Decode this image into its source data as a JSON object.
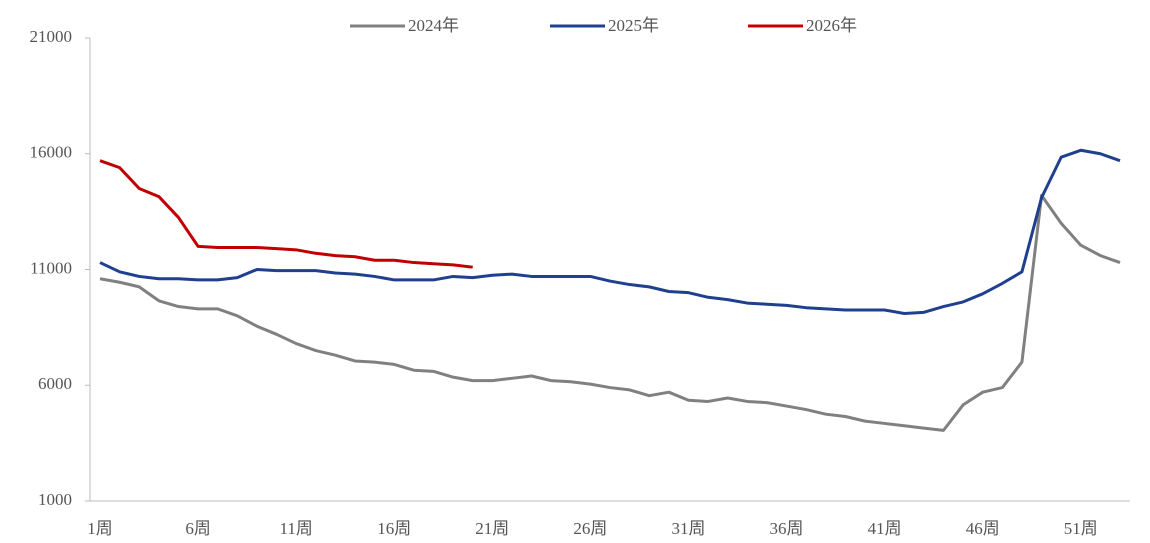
{
  "chart_data": {
    "type": "line",
    "categories": [
      "1周",
      null,
      null,
      null,
      null,
      "6周",
      null,
      null,
      null,
      null,
      "11周",
      null,
      null,
      null,
      null,
      "16周",
      null,
      null,
      null,
      null,
      "21周",
      null,
      null,
      null,
      null,
      "26周",
      null,
      null,
      null,
      null,
      "31周",
      null,
      null,
      null,
      null,
      "36周",
      null,
      null,
      null,
      null,
      "41周",
      null,
      null,
      null,
      null,
      "46周",
      null,
      null,
      null,
      null,
      "51周",
      null,
      null
    ],
    "series": [
      {
        "name": "2024年",
        "color": "#808080",
        "values": [
          10600,
          10450,
          10250,
          9650,
          9400,
          9300,
          9300,
          9000,
          8550,
          8200,
          7800,
          7500,
          7300,
          7050,
          7000,
          6900,
          6650,
          6600,
          6350,
          6200,
          6200,
          6300,
          6400,
          6200,
          6150,
          6050,
          5900,
          5800,
          5550,
          5700,
          5350,
          5300,
          5450,
          5300,
          5250,
          5100,
          4950,
          4750,
          4650,
          4450,
          4350,
          4250,
          4150,
          4050,
          5150,
          5700,
          5900,
          7000,
          14200,
          13000,
          12050,
          11600,
          11300
        ]
      },
      {
        "name": "2025年",
        "color": "#1f3f8f",
        "values": [
          11300,
          10900,
          10700,
          10600,
          10600,
          10550,
          10550,
          10650,
          11000,
          10950,
          10950,
          10950,
          10850,
          10800,
          10700,
          10550,
          10550,
          10550,
          10700,
          10650,
          10750,
          10800,
          10700,
          10700,
          10700,
          10700,
          10500,
          10350,
          10250,
          10050,
          10000,
          9800,
          9700,
          9550,
          9500,
          9450,
          9350,
          9300,
          9250,
          9250,
          9250,
          9100,
          9150,
          9400,
          9600,
          9950,
          10400,
          10900,
          14100,
          15850,
          16150,
          16000,
          15700
        ]
      },
      {
        "name": "2026年",
        "color": "#c00000",
        "values": [
          15700,
          15400,
          14500,
          14150,
          13250,
          12000,
          11950,
          11950,
          11950,
          11900,
          11850,
          11700,
          11600,
          11550,
          11400,
          11400,
          11300,
          11250,
          11200,
          11100,
          null,
          null,
          null,
          null,
          null,
          null,
          null,
          null,
          null,
          null,
          null,
          null,
          null,
          null,
          null,
          null,
          null,
          null,
          null,
          null,
          null,
          null,
          null,
          null,
          null,
          null,
          null,
          null,
          null,
          null,
          null,
          null,
          null
        ]
      }
    ],
    "ylim": [
      1000,
      21000
    ],
    "yticks": [
      1000,
      6000,
      11000,
      16000,
      21000
    ],
    "legend": "top"
  }
}
